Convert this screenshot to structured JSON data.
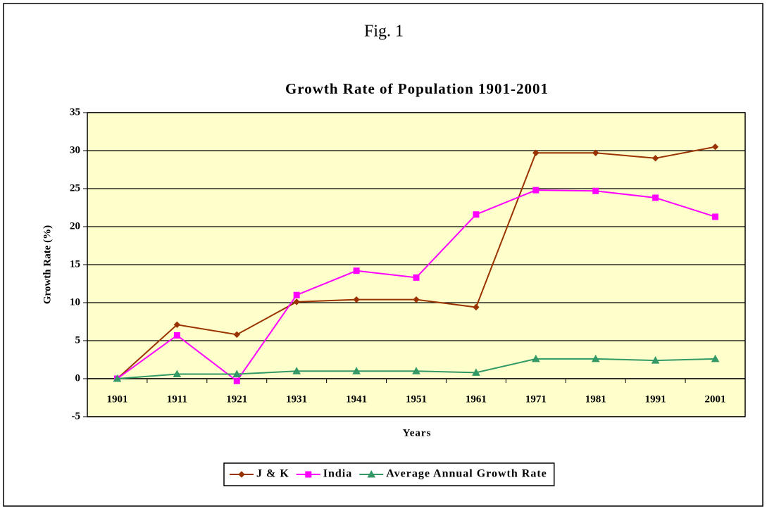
{
  "chart_data": {
    "type": "line",
    "figure_label": "Fig. 1",
    "title": "Growth Rate of Population 1901-2001",
    "x_label": "Years",
    "y_label": "Growth Rate (%)",
    "categories": [
      "1901",
      "1911",
      "1921",
      "1931",
      "1941",
      "1951",
      "1961",
      "1971",
      "1981",
      "1991",
      "2001"
    ],
    "series": [
      {
        "name": "J & K",
        "color": "#993300",
        "marker": "diamond",
        "values": [
          0,
          7.1,
          5.8,
          10.1,
          10.4,
          10.4,
          9.4,
          29.7,
          29.7,
          29.0,
          30.5
        ]
      },
      {
        "name": "India",
        "color": "#ff00ff",
        "marker": "square",
        "values": [
          0,
          5.7,
          -0.3,
          11.0,
          14.2,
          13.3,
          21.6,
          24.8,
          24.7,
          23.8,
          21.3
        ]
      },
      {
        "name": "Average Annual Growth Rate",
        "color": "#339966",
        "marker": "triangle",
        "values": [
          0,
          0.6,
          0.6,
          1.0,
          1.0,
          1.0,
          0.8,
          2.6,
          2.6,
          2.4,
          2.6
        ]
      }
    ],
    "ylim": [
      -5,
      35
    ],
    "yticks": [
      -5,
      0,
      5,
      10,
      15,
      20,
      25,
      30,
      35
    ],
    "grid": true,
    "legend": "bottom",
    "plot_background": "#ffffcc"
  }
}
